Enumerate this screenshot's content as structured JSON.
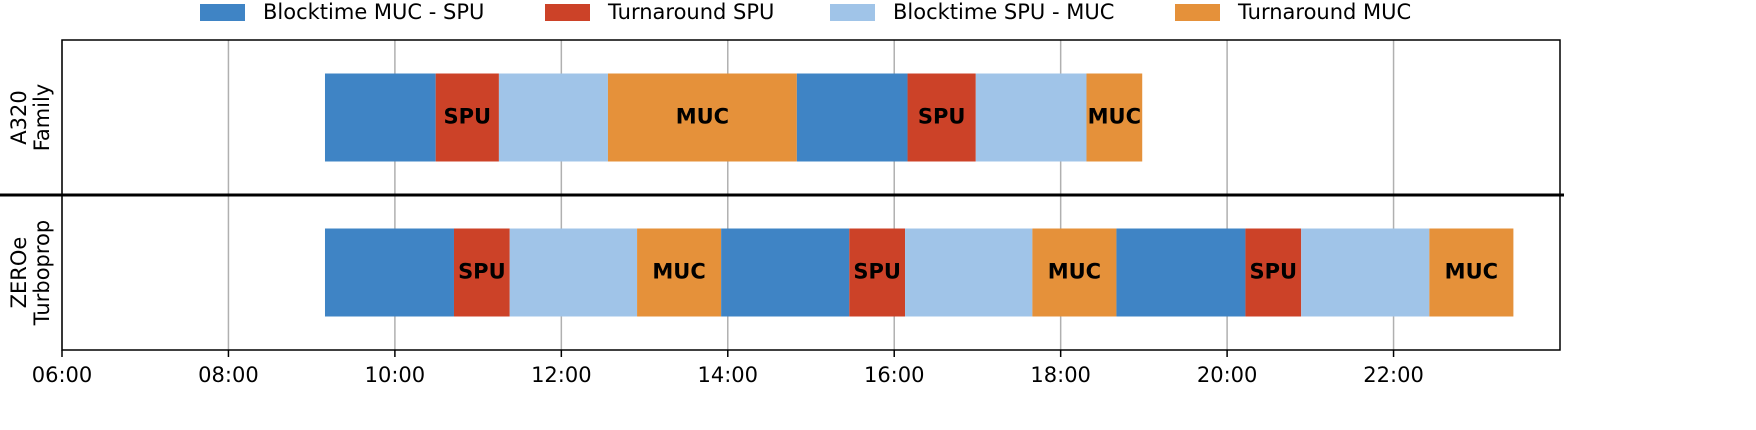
{
  "chart_data": {
    "type": "gantt",
    "categories": [
      [
        "A320",
        "Family"
      ],
      [
        "ZEROe",
        "Turboprop"
      ]
    ],
    "series": [
      {
        "name": "Blocktime MUC - SPU",
        "color": "#3f84c5"
      },
      {
        "name": "Turnaround SPU",
        "color": "#cc4228"
      },
      {
        "name": "Blocktime SPU - MUC",
        "color": "#a0c4e8"
      },
      {
        "name": "Turnaround MUC",
        "color": "#e5913a"
      }
    ],
    "tasks": [
      {
        "row": 0,
        "series": 0,
        "start": 9.16,
        "end": 10.49
      },
      {
        "row": 0,
        "series": 1,
        "start": 10.49,
        "end": 11.25,
        "label": "SPU"
      },
      {
        "row": 0,
        "series": 2,
        "start": 11.25,
        "end": 12.56
      },
      {
        "row": 0,
        "series": 3,
        "start": 12.56,
        "end": 14.83,
        "label": "MUC"
      },
      {
        "row": 0,
        "series": 0,
        "start": 14.83,
        "end": 16.16
      },
      {
        "row": 0,
        "series": 1,
        "start": 16.16,
        "end": 16.98,
        "label": "SPU"
      },
      {
        "row": 0,
        "series": 2,
        "start": 16.98,
        "end": 18.31
      },
      {
        "row": 0,
        "series": 3,
        "start": 18.31,
        "end": 18.98,
        "label": "MUC"
      },
      {
        "row": 1,
        "series": 0,
        "start": 9.16,
        "end": 10.71
      },
      {
        "row": 1,
        "series": 1,
        "start": 10.71,
        "end": 11.38,
        "label": "SPU"
      },
      {
        "row": 1,
        "series": 2,
        "start": 11.38,
        "end": 12.91
      },
      {
        "row": 1,
        "series": 3,
        "start": 12.91,
        "end": 13.92,
        "label": "MUC"
      },
      {
        "row": 1,
        "series": 0,
        "start": 13.92,
        "end": 15.46
      },
      {
        "row": 1,
        "series": 1,
        "start": 15.46,
        "end": 16.13,
        "label": "SPU"
      },
      {
        "row": 1,
        "series": 2,
        "start": 16.13,
        "end": 17.66
      },
      {
        "row": 1,
        "series": 3,
        "start": 17.66,
        "end": 18.67,
        "label": "MUC"
      },
      {
        "row": 1,
        "series": 0,
        "start": 18.67,
        "end": 20.22
      },
      {
        "row": 1,
        "series": 1,
        "start": 20.22,
        "end": 20.89,
        "label": "SPU"
      },
      {
        "row": 1,
        "series": 2,
        "start": 20.89,
        "end": 22.43
      },
      {
        "row": 1,
        "series": 3,
        "start": 22.43,
        "end": 23.44,
        "label": "MUC"
      }
    ],
    "xlim": [
      6,
      24
    ],
    "xticks": [
      {
        "value": 6,
        "label": "06:00"
      },
      {
        "value": 8,
        "label": "08:00"
      },
      {
        "value": 10,
        "label": "10:00"
      },
      {
        "value": 12,
        "label": "12:00"
      },
      {
        "value": 14,
        "label": "14:00"
      },
      {
        "value": 16,
        "label": "16:00"
      },
      {
        "value": 18,
        "label": "18:00"
      },
      {
        "value": 20,
        "label": "20:00"
      },
      {
        "value": 22,
        "label": "22:00"
      }
    ],
    "grid": true,
    "legend": "top"
  }
}
